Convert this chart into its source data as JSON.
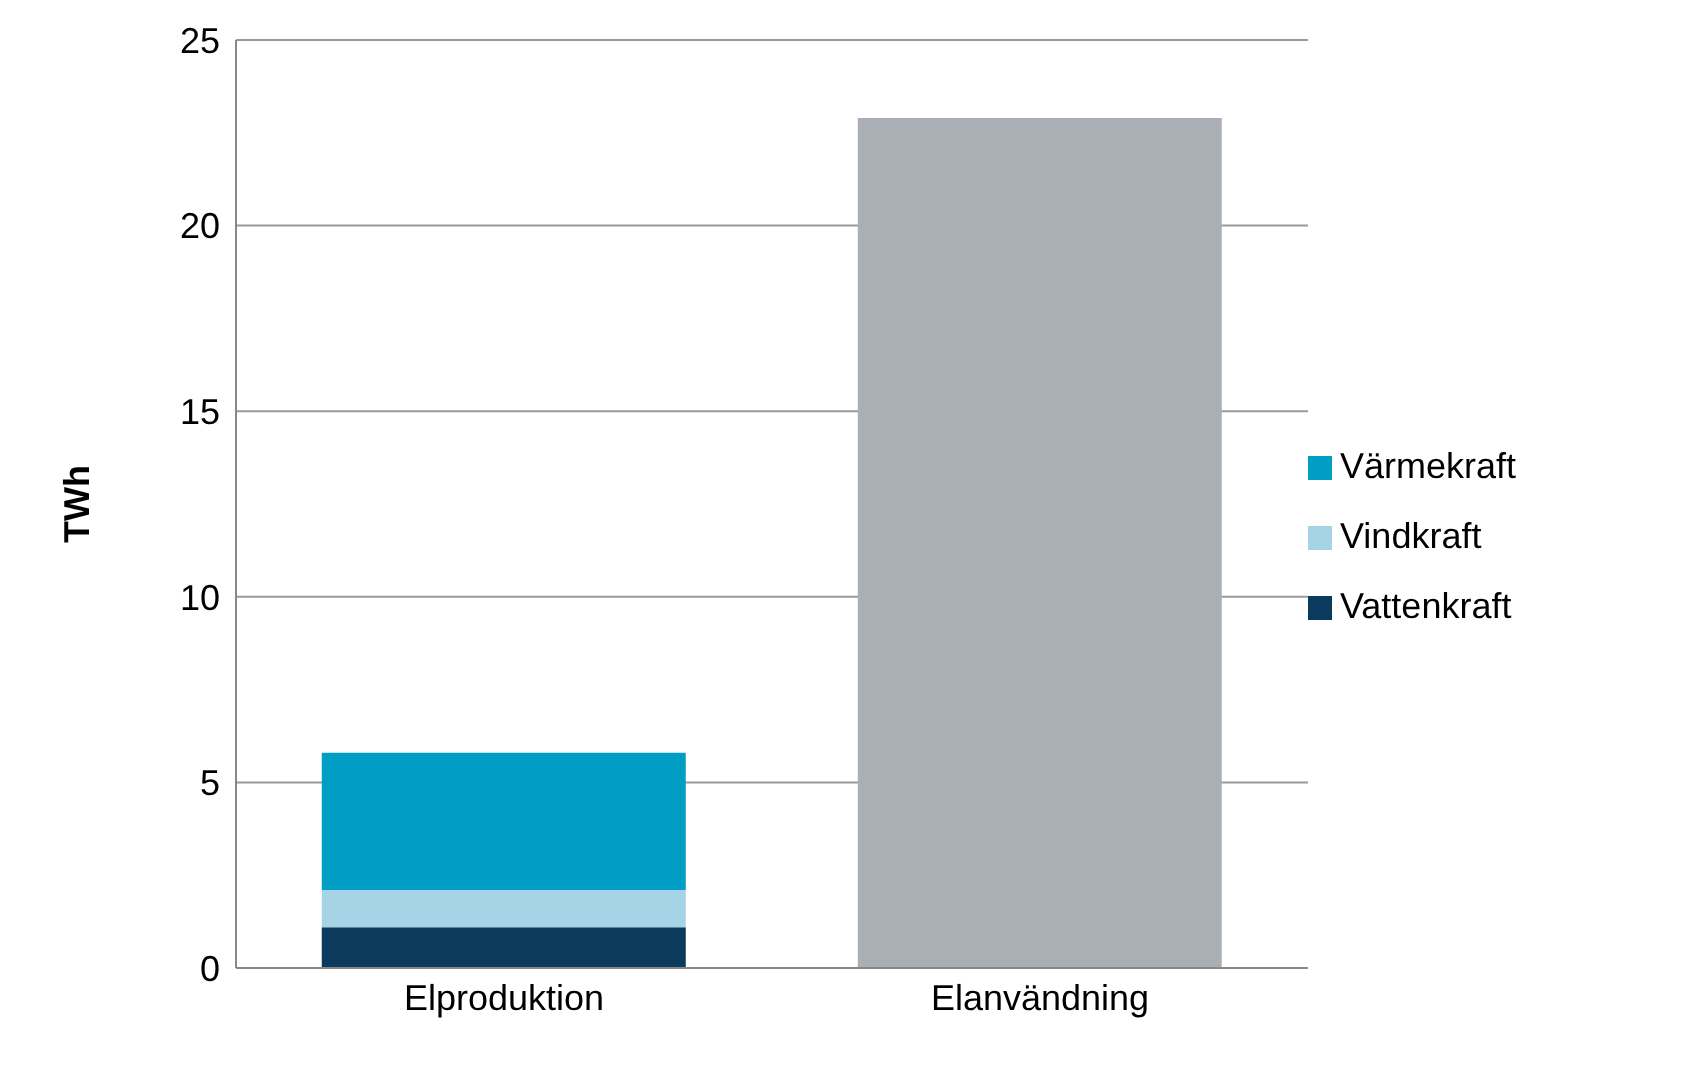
{
  "chart_data": {
    "type": "bar",
    "ylabel": "TWh",
    "categories": [
      "Elproduktion",
      "Elanvändning"
    ],
    "series": [
      {
        "name": "Vattenkraft",
        "color": "#0b3a5c",
        "values": [
          1.1,
          null
        ]
      },
      {
        "name": "Vindkraft",
        "color": "#a6d4e6",
        "values": [
          1.0,
          null
        ]
      },
      {
        "name": "Värmekraft",
        "color": "#009ec4",
        "values": [
          3.7,
          null
        ]
      },
      {
        "color": "#a9afb5",
        "values": [
          null,
          22.9
        ]
      }
    ],
    "stacked": true,
    "ylim": [
      0,
      25
    ],
    "yticks": [
      0,
      5,
      10,
      15,
      20,
      25
    ],
    "grid": "y",
    "legend": "right"
  }
}
